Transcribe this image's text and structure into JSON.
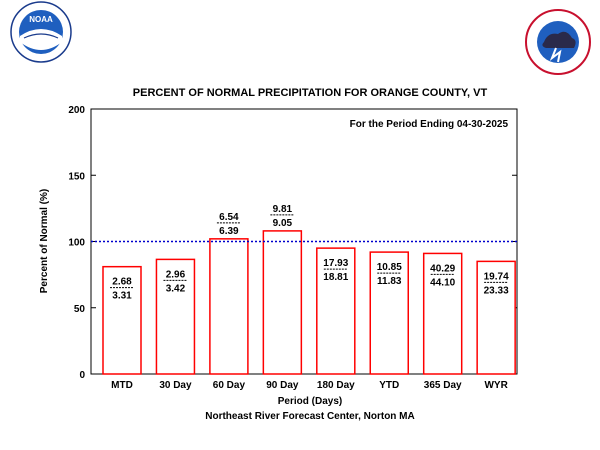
{
  "logos": {
    "left": {
      "icon": "noaa-logo",
      "text": "NOAA",
      "ring_text": "NATIONAL OCEANIC AND ATMOSPHERIC ADMINISTRATION",
      "bottom_text": "U.S. DEPARTMENT OF COMMERCE"
    },
    "right": {
      "icon": "nws-logo",
      "ring_text": "NATIONAL WEATHER SERVICE"
    }
  },
  "chart_data": {
    "type": "bar",
    "title": "PERCENT OF NORMAL PRECIPITATION FOR ORANGE COUNTY, VT",
    "annotation": "For the Period Ending 04-30-2025",
    "xlabel": "Period (Days)",
    "ylabel": "Percent of Normal (%)",
    "footer": "Northeast River Forecast Center, Norton MA",
    "ylim": [
      0,
      200
    ],
    "yticks": [
      "0",
      "50",
      "100",
      "150",
      "200"
    ],
    "reference_line": 100,
    "categories": [
      "MTD",
      "30 Day",
      "60 Day",
      "90 Day",
      "180 Day",
      "YTD",
      "365 Day",
      "WYR"
    ],
    "values": [
      81,
      86.5,
      102,
      108,
      95,
      92,
      91,
      85
    ],
    "observed": [
      "2.68",
      "2.96",
      "6.54",
      "9.81",
      "17.93",
      "10.85",
      "40.29",
      "19.74"
    ],
    "normal": [
      "3.31",
      "3.42",
      "6.39",
      "9.05",
      "18.81",
      "11.83",
      "44.10",
      "23.33"
    ],
    "colors": {
      "bar_edge": "#ff0000",
      "reference_line": "#0000cc",
      "axes": "#000000"
    }
  }
}
